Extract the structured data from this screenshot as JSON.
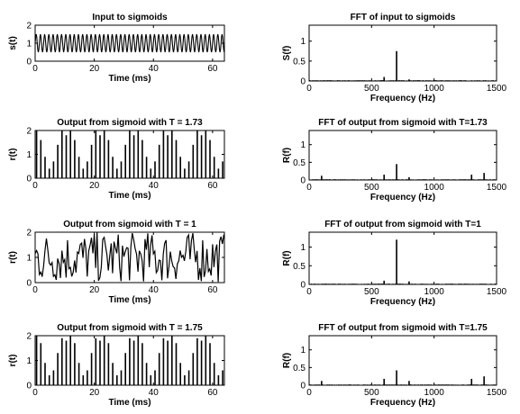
{
  "chart_data": [
    {
      "type": "line",
      "title": "Input to sigmoids",
      "xlabel": "Time (ms)",
      "ylabel": "s(t)",
      "xlim": [
        0,
        64
      ],
      "ylim": [
        0,
        2
      ],
      "xticks": [
        "0",
        "20",
        "40",
        "60"
      ],
      "yticks": [
        "0",
        "1",
        "2"
      ],
      "signal": {
        "kind": "oscillation",
        "frequency_hz": 700,
        "min": 0.5,
        "max": 1.5,
        "band_density": 0
      }
    },
    {
      "type": "line",
      "title": "FFT of input to sigmoids",
      "xlabel": "Frequency (Hz)",
      "ylabel": "S(f)",
      "xlim": [
        0,
        1500
      ],
      "ylim": [
        0,
        1.4
      ],
      "xticks": [
        "0",
        "500",
        "1000",
        "1500"
      ],
      "yticks": [
        "0",
        "0.5",
        "1"
      ],
      "peaks": [
        {
          "x": 600,
          "y": 0.1
        },
        {
          "x": 700,
          "y": 0.75
        },
        {
          "x": 800,
          "y": 0.04
        }
      ]
    },
    {
      "type": "line",
      "title": "Output from sigmoid with T = 1.73",
      "xlabel": "Time (ms)",
      "ylabel": "r(t)",
      "xlim": [
        0,
        64
      ],
      "ylim": [
        0,
        2
      ],
      "xticks": [
        "0",
        "20",
        "40",
        "60"
      ],
      "yticks": [
        "0",
        "1",
        "2"
      ],
      "signal": {
        "kind": "pulses",
        "pulse_heights": [
          2,
          1.6,
          0.9,
          0.4,
          0.7,
          1.4,
          2,
          1.8
        ],
        "spacing_ms": 1.43,
        "band_density": 0
      }
    },
    {
      "type": "line",
      "title": "FFT of output from sigmoid with T=1.73",
      "xlabel": "Frequency (Hz)",
      "ylabel": "R(f)",
      "xlim": [
        0,
        1500
      ],
      "ylim": [
        0,
        1.4
      ],
      "xticks": [
        "0",
        "500",
        "1000",
        "1500"
      ],
      "yticks": [
        "0",
        "0.5",
        "1"
      ],
      "peaks": [
        {
          "x": 100,
          "y": 0.12
        },
        {
          "x": 600,
          "y": 0.15
        },
        {
          "x": 700,
          "y": 0.45
        },
        {
          "x": 800,
          "y": 0.08
        },
        {
          "x": 1300,
          "y": 0.15
        },
        {
          "x": 1400,
          "y": 0.2
        }
      ]
    },
    {
      "type": "line",
      "title": "Output from sigmoid with T = 1",
      "xlabel": "Time (ms)",
      "ylabel": "r(t)",
      "xlim": [
        0,
        64
      ],
      "ylim": [
        0,
        2
      ],
      "xticks": [
        "0",
        "20",
        "40",
        "60"
      ],
      "yticks": [
        "0",
        "1",
        "2"
      ],
      "signal": {
        "kind": "dense",
        "frequency_hz": 700,
        "min": 0,
        "max": 2,
        "band_density": 0.35
      }
    },
    {
      "type": "line",
      "title": "FFT of output from sigmoid with T=1",
      "xlabel": "Frequency (Hz)",
      "ylabel": "R(f)",
      "xlim": [
        0,
        1500
      ],
      "ylim": [
        0,
        1.4
      ],
      "xticks": [
        "0",
        "500",
        "1000",
        "1500"
      ],
      "yticks": [
        "0",
        "0.5",
        "1"
      ],
      "peaks": [
        {
          "x": 600,
          "y": 0.1
        },
        {
          "x": 700,
          "y": 1.2
        },
        {
          "x": 800,
          "y": 0.08
        }
      ]
    },
    {
      "type": "line",
      "title": "Output from sigmoid with T = 1.75",
      "xlabel": "Time (ms)",
      "ylabel": "r(t)",
      "xlim": [
        0,
        64
      ],
      "ylim": [
        0,
        2
      ],
      "xticks": [
        "0",
        "20",
        "40",
        "60"
      ],
      "yticks": [
        "0",
        "1",
        "2"
      ],
      "signal": {
        "kind": "pulses",
        "pulse_heights": [
          2,
          1.7,
          0.9,
          0.4,
          0.6,
          1.3,
          1.9,
          1.8
        ],
        "spacing_ms": 1.43,
        "band_density": 0
      }
    },
    {
      "type": "line",
      "title": "FFT of output from sigmoid with T=1.75",
      "xlabel": "Frequency (Hz)",
      "ylabel": "R(f)",
      "xlim": [
        0,
        1500
      ],
      "ylim": [
        0,
        1.4
      ],
      "xticks": [
        "0",
        "500",
        "1000",
        "1500"
      ],
      "yticks": [
        "0",
        "0.5",
        "1"
      ],
      "peaks": [
        {
          "x": 100,
          "y": 0.12
        },
        {
          "x": 600,
          "y": 0.18
        },
        {
          "x": 700,
          "y": 0.42
        },
        {
          "x": 800,
          "y": 0.12
        },
        {
          "x": 1300,
          "y": 0.18
        },
        {
          "x": 1400,
          "y": 0.25
        }
      ]
    }
  ]
}
